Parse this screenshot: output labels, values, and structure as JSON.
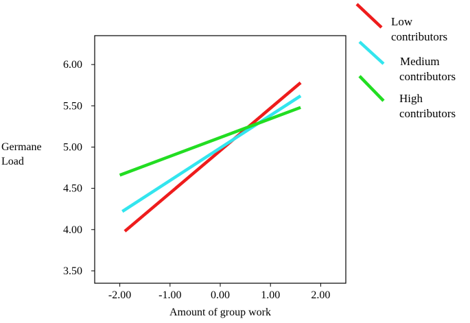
{
  "chart_data": {
    "type": "line",
    "xlabel": "Amount of group work",
    "ylabel_lines": [
      "Germane",
      "Load"
    ],
    "xlim": [
      -2.5,
      2.5
    ],
    "ylim": [
      3.35,
      6.35
    ],
    "xticks": [
      -2.0,
      -1.0,
      0.0,
      1.0,
      2.0
    ],
    "xtick_labels": [
      "-2.00",
      "-1.00",
      "0.00",
      "1.00",
      "2.00"
    ],
    "yticks": [
      3.5,
      4.0,
      4.5,
      5.0,
      5.5,
      6.0
    ],
    "ytick_labels": [
      "3.50",
      "4.00",
      "4.50",
      "5.00",
      "5.50",
      "6.00"
    ],
    "grid": false,
    "legend_position": "outside-top-right",
    "series": [
      {
        "name": "Low contributors",
        "name_lines": [
          "Low",
          "contributors"
        ],
        "color": "#ee1c1c",
        "x": [
          -1.9,
          1.6
        ],
        "y": [
          3.98,
          5.78
        ]
      },
      {
        "name": "Medium contributors",
        "name_lines": [
          "Medium",
          "contributors"
        ],
        "color": "#33e5ee",
        "x": [
          -1.95,
          1.6
        ],
        "y": [
          4.22,
          5.62
        ]
      },
      {
        "name": "High contributors",
        "name_lines": [
          "High",
          "contributors"
        ],
        "color": "#22dd22",
        "x": [
          -2.0,
          1.6
        ],
        "y": [
          4.66,
          5.48
        ]
      }
    ]
  }
}
